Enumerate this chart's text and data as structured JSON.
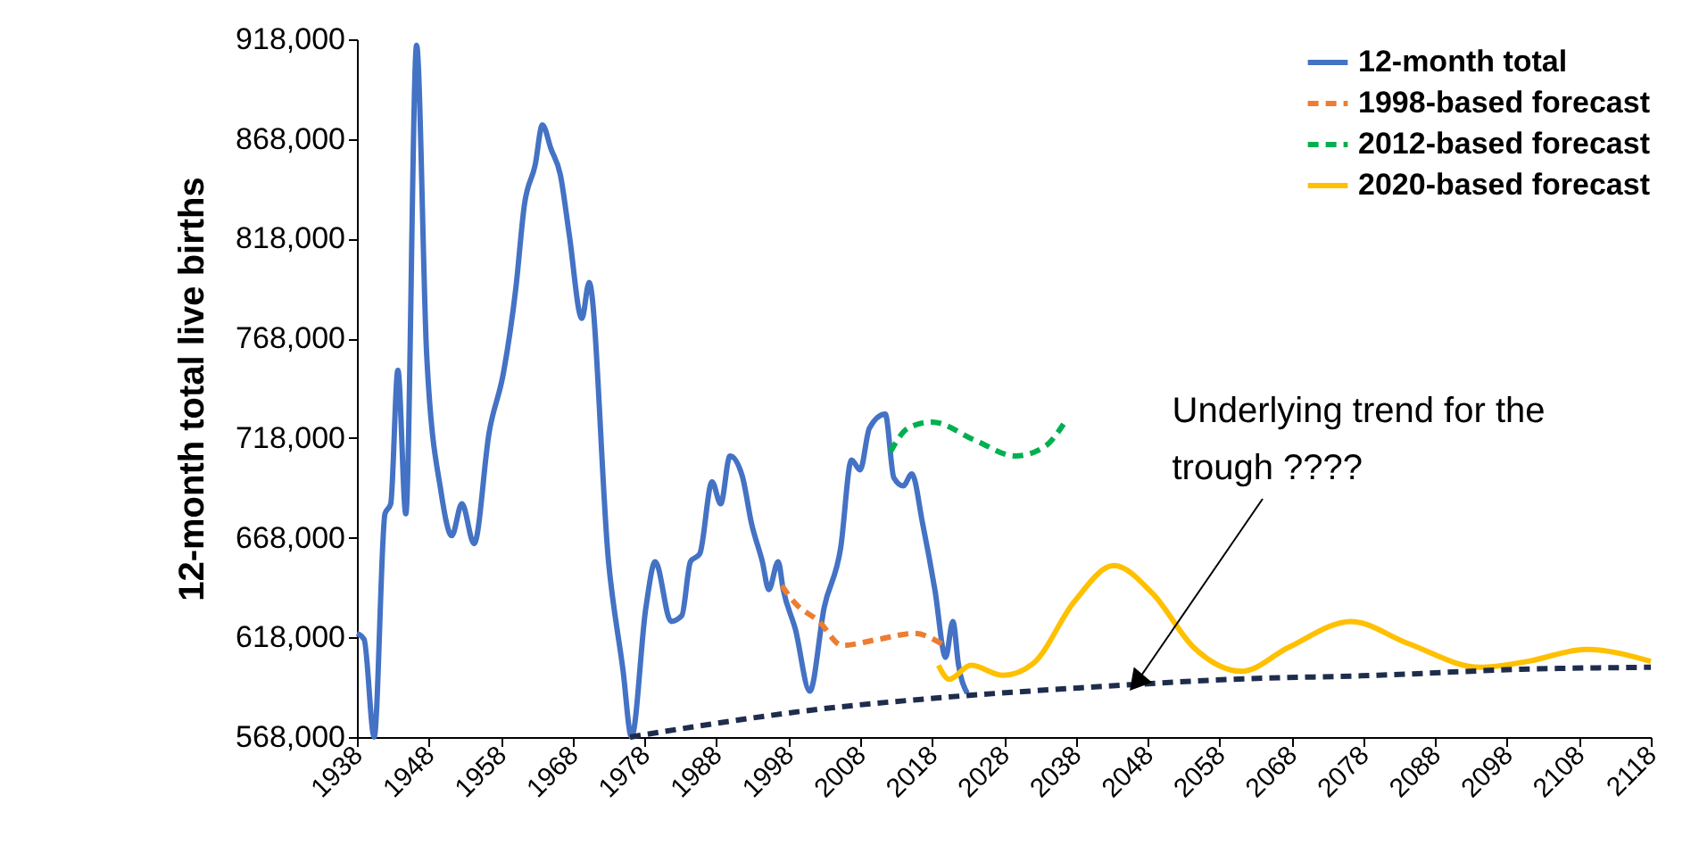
{
  "chart_data": {
    "type": "line",
    "ylabel": "12-month total live births",
    "xlim": [
      1938,
      2118
    ],
    "xticks": [
      1938,
      1948,
      1958,
      1968,
      1978,
      1988,
      1998,
      2008,
      2018,
      2028,
      2038,
      2048,
      2058,
      2068,
      2078,
      2088,
      2098,
      2108,
      2118
    ],
    "ylim": [
      568000,
      918000
    ],
    "yticks": [
      {
        "value": 568000,
        "label": "568,000"
      },
      {
        "value": 618000,
        "label": "618,000"
      },
      {
        "value": 668000,
        "label": "668,000"
      },
      {
        "value": 718000,
        "label": "718,000"
      },
      {
        "value": 768000,
        "label": "768,000"
      },
      {
        "value": 818000,
        "label": "818,000"
      },
      {
        "value": 868000,
        "label": "868,000"
      },
      {
        "value": 918000,
        "label": "918,000"
      }
    ],
    "grid": false,
    "legend": "top right",
    "marker": "none",
    "series": [
      {
        "name": "12-month total",
        "color": "#4472c4",
        "line_style": "solid",
        "x": [
          1938,
          1939,
          1940.4,
          1941.9,
          1942.7,
          1943.7,
          1944.8,
          1946.3,
          1947.7,
          1949.7,
          1951.2,
          1952.6,
          1954.3,
          1956.4,
          1958.4,
          1960.1,
          1961.3,
          1962.8,
          1963.8,
          1965,
          1966.3,
          1967.5,
          1969.3,
          1970.3,
          1973,
          1975,
          1976.2,
          1978.2,
          1979.5,
          1981.7,
          1983.2,
          1984.4,
          1985.7,
          1987.4,
          1988.6,
          1989.9,
          1991.6,
          1992.9,
          1994.4,
          1995.3,
          1996.6,
          1997.3,
          1999,
          2001,
          2003,
          2005.3,
          2006.8,
          2008,
          2009.3,
          2011.5,
          2012.7,
          2014,
          2015.2,
          2016.7,
          2018.4,
          2019.9,
          2020.9,
          2021.7,
          2022.9
        ],
        "values": [
          620000,
          617000,
          568000,
          680000,
          685000,
          752000,
          680000,
          915000,
          760000,
          691000,
          669000,
          685000,
          665000,
          721000,
          751000,
          793000,
          835000,
          855000,
          875000,
          863000,
          850000,
          821000,
          778000,
          796000,
          656000,
          602000,
          568000,
          633000,
          656000,
          626000,
          629000,
          656000,
          660000,
          696000,
          685000,
          709000,
          699000,
          675000,
          656000,
          642000,
          656000,
          642000,
          622000,
          591000,
          633000,
          663000,
          707000,
          702000,
          723000,
          730000,
          698000,
          694000,
          700000,
          675000,
          642000,
          608000,
          626000,
          604000,
          590000
        ]
      },
      {
        "name": "1998-based forecast",
        "color": "#ed7d31",
        "line_style": "dashed",
        "x": [
          1997.1,
          1999,
          2002.3,
          2005.5,
          2010.5,
          2015.5,
          2019.7
        ],
        "values": [
          644000,
          635000,
          626000,
          614000,
          617000,
          620000,
          614000
        ]
      },
      {
        "name": "2012-based forecast",
        "color": "#00b050",
        "line_style": "dashed",
        "x": [
          2012.2,
          2014.7,
          2018,
          2023.9,
          2029.6,
          2033.8,
          2036.3
        ],
        "values": [
          711000,
          723000,
          726000,
          717000,
          709000,
          714000,
          725000
        ]
      },
      {
        "name": "2020-based forecast",
        "color": "#ffc000",
        "line_style": "solid",
        "x": [
          2018.9,
          2020.4,
          2023.4,
          2027.9,
          2032.1,
          2037.8,
          2043.3,
          2048.7,
          2054.4,
          2061.1,
          2067.6,
          2076.3,
          2084.2,
          2094.2,
          2100.9,
          2109,
          2118
        ],
        "values": [
          604000,
          597000,
          604000,
          599000,
          605000,
          636000,
          654000,
          640000,
          613000,
          601000,
          613000,
          626000,
          615000,
          603000,
          606000,
          612000,
          606000
        ]
      },
      {
        "color": "#1f2d4d",
        "line_style": "dashed",
        "x": [
          1976,
          1990,
          2000,
          2020,
          2040,
          2060,
          2080,
          2100,
          2118
        ],
        "values": [
          568000,
          576000,
          581000,
          588000,
          593000,
          597000,
          599000,
          602000,
          603000
        ]
      }
    ],
    "annotations": [
      {
        "text": "Underlying trend for the trough ????",
        "x": 2046,
        "y": 593000
      }
    ]
  }
}
